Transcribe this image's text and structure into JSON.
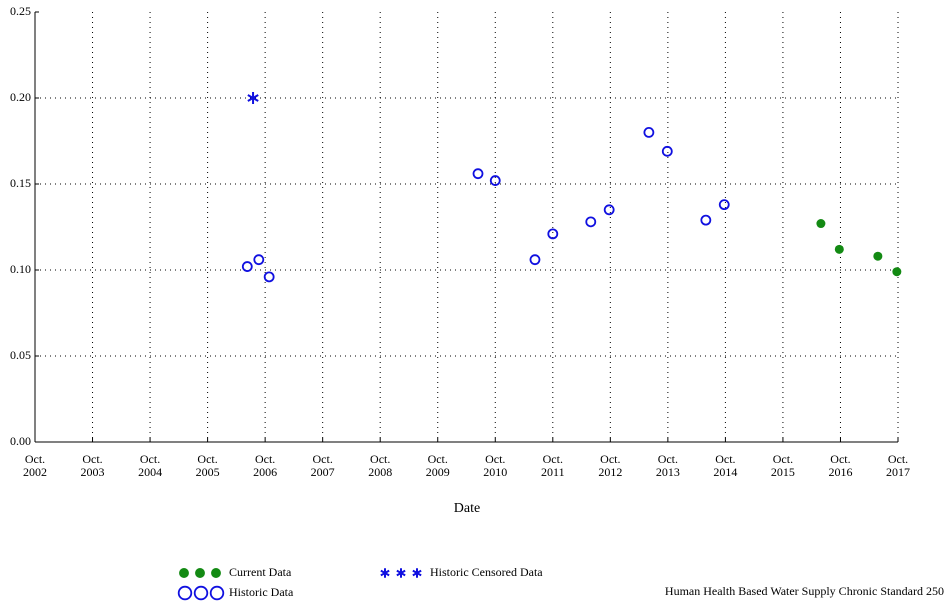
{
  "chart_data": {
    "type": "scatter",
    "xlabel": "Date",
    "xlim": [
      2002.75,
      2017.75
    ],
    "xticks": [
      {
        "value": 2002.75,
        "label": "Oct. 2002"
      },
      {
        "value": 2003.75,
        "label": "Oct. 2003"
      },
      {
        "value": 2004.75,
        "label": "Oct. 2004"
      },
      {
        "value": 2005.75,
        "label": "Oct. 2005"
      },
      {
        "value": 2006.75,
        "label": "Oct. 2006"
      },
      {
        "value": 2007.75,
        "label": "Oct. 2007"
      },
      {
        "value": 2008.75,
        "label": "Oct. 2008"
      },
      {
        "value": 2009.75,
        "label": "Oct. 2009"
      },
      {
        "value": 2010.75,
        "label": "Oct. 2010"
      },
      {
        "value": 2011.75,
        "label": "Oct. 2011"
      },
      {
        "value": 2012.75,
        "label": "Oct. 2012"
      },
      {
        "value": 2013.75,
        "label": "Oct. 2013"
      },
      {
        "value": 2014.75,
        "label": "Oct. 2014"
      },
      {
        "value": 2015.75,
        "label": "Oct. 2015"
      },
      {
        "value": 2016.75,
        "label": "Oct. 2016"
      },
      {
        "value": 2017.75,
        "label": "Oct. 2017"
      }
    ],
    "ylim": [
      0,
      0.25
    ],
    "yticks": [
      {
        "value": 0,
        "label": "0.00"
      },
      0.05,
      {
        "value": 0.1,
        "label": "0.10"
      },
      0.15,
      {
        "value": 0.2,
        "label": "0.20"
      },
      0.25
    ],
    "grid": true,
    "series": [
      {
        "name": "Current Data",
        "color": "#138a13",
        "marker": "filled-circle",
        "x": [
          2016.41,
          2016.73,
          2017.4,
          2017.73
        ],
        "values": [
          0.127,
          0.112,
          0.108,
          0.099
        ]
      },
      {
        "name": "Historic Data",
        "color": "#1010e0",
        "marker": "open-circle",
        "x": [
          2006.44,
          2006.64,
          2006.82,
          2010.45,
          2010.75,
          2011.44,
          2011.75,
          2012.41,
          2012.73,
          2013.42,
          2013.74,
          2014.41,
          2014.73
        ],
        "values": [
          0.102,
          0.106,
          0.096,
          0.156,
          0.152,
          0.106,
          0.121,
          0.128,
          0.135,
          0.18,
          0.169,
          0.129,
          0.138
        ]
      },
      {
        "name": "Historic Censored Data",
        "color": "#1010e0",
        "marker": "star",
        "x": [
          2006.54
        ],
        "values": [
          0.2
        ]
      }
    ],
    "annotation": {
      "text": "Human Health Based Water Supply Chronic Standard 250",
      "color": "#e01010"
    }
  }
}
